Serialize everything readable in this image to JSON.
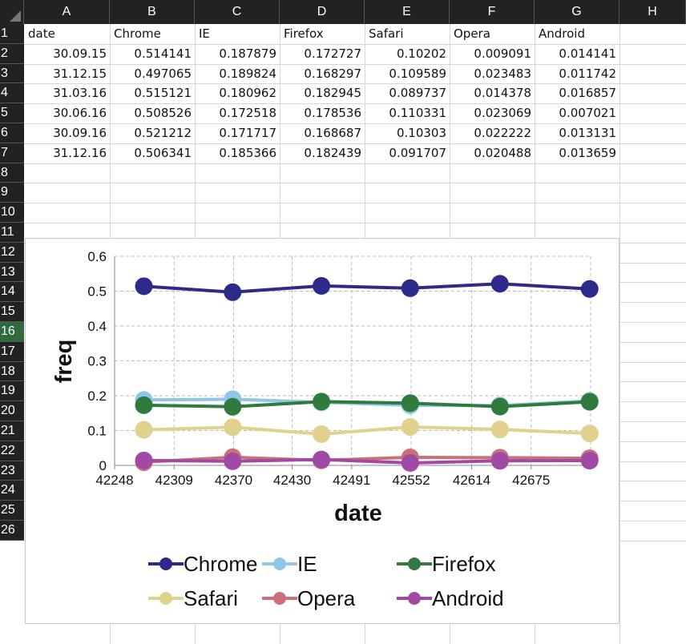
{
  "sheet": {
    "columns": [
      "A",
      "B",
      "C",
      "D",
      "E",
      "F",
      "G",
      "H"
    ],
    "rows": [
      "1",
      "2",
      "3",
      "4",
      "5",
      "6",
      "7",
      "8",
      "9",
      "10",
      "11",
      "12",
      "13",
      "14",
      "15",
      "16",
      "17",
      "18",
      "19",
      "20",
      "21",
      "22",
      "23",
      "24",
      "25",
      "26"
    ],
    "active_row": "16",
    "header": [
      "date",
      "Chrome",
      "IE",
      "Firefox",
      "Safari",
      "Opera",
      "Android"
    ],
    "data": [
      [
        "30.09.15",
        "0.514141",
        "0.187879",
        "0.172727",
        "0.10202",
        "0.009091",
        "0.014141"
      ],
      [
        "31.12.15",
        "0.497065",
        "0.189824",
        "0.168297",
        "0.109589",
        "0.023483",
        "0.011742"
      ],
      [
        "31.03.16",
        "0.515121",
        "0.180962",
        "0.182945",
        "0.089737",
        "0.014378",
        "0.016857"
      ],
      [
        "30.06.16",
        "0.508526",
        "0.172518",
        "0.178536",
        "0.110331",
        "0.023069",
        "0.007021"
      ],
      [
        "30.09.16",
        "0.521212",
        "0.171717",
        "0.168687",
        "0.10303",
        "0.022222",
        "0.013131"
      ],
      [
        "31.12.16",
        "0.506341",
        "0.185366",
        "0.182439",
        "0.091707",
        "0.020488",
        "0.013659"
      ]
    ]
  },
  "chart_data": {
    "type": "line",
    "title": "",
    "xlabel": "date",
    "ylabel": "freq",
    "xlim": [
      42248,
      42736
    ],
    "ylim": [
      0,
      0.6
    ],
    "xticks": [
      42248,
      42309,
      42370,
      42430,
      42491,
      42552,
      42614,
      42675
    ],
    "xtick_labels": [
      "42248",
      "42309",
      "42370",
      "42430",
      "42491",
      "42552",
      "42614",
      "42675"
    ],
    "yticks": [
      0,
      0.1,
      0.2,
      0.3,
      0.4,
      0.5,
      0.6
    ],
    "ytick_labels": [
      "0",
      "0.1",
      "0.2",
      "0.3",
      "0.4",
      "0.5",
      "0.6"
    ],
    "grid": true,
    "legend_position": "bottom",
    "x": [
      42278,
      42369,
      42460,
      42551,
      42643,
      42735
    ],
    "series": [
      {
        "name": "Chrome",
        "color": "#2e2a8a",
        "values": [
          0.514141,
          0.497065,
          0.515121,
          0.508526,
          0.521212,
          0.506341
        ]
      },
      {
        "name": "IE",
        "color": "#8fc6ea",
        "values": [
          0.187879,
          0.189824,
          0.180962,
          0.172518,
          0.171717,
          0.185366
        ]
      },
      {
        "name": "Firefox",
        "color": "#2f7a3c",
        "values": [
          0.172727,
          0.168297,
          0.182945,
          0.178536,
          0.168687,
          0.182439
        ]
      },
      {
        "name": "Safari",
        "color": "#e0d28c",
        "values": [
          0.10202,
          0.109589,
          0.089737,
          0.110331,
          0.10303,
          0.091707
        ]
      },
      {
        "name": "Opera",
        "color": "#cc6f78",
        "values": [
          0.009091,
          0.023483,
          0.014378,
          0.023069,
          0.022222,
          0.020488
        ]
      },
      {
        "name": "Android",
        "color": "#a04aa6",
        "values": [
          0.014141,
          0.011742,
          0.016857,
          0.007021,
          0.013131,
          0.013659
        ]
      }
    ]
  }
}
